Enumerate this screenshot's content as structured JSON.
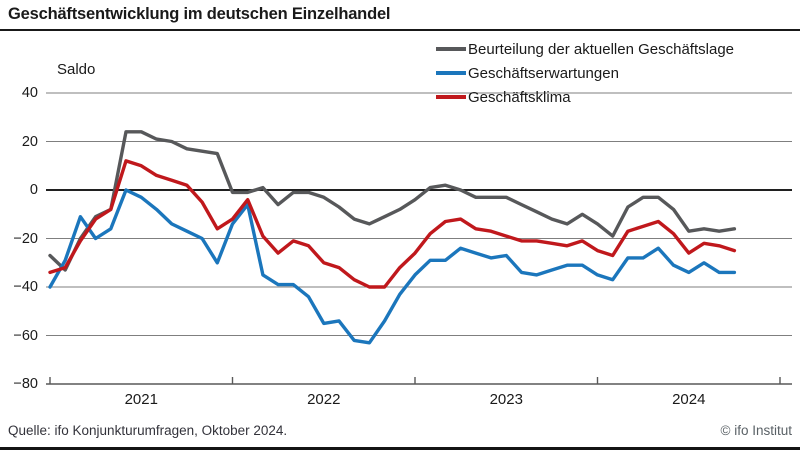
{
  "header": {
    "title": "Geschäftsentwicklung im deutschen Einzelhandel"
  },
  "footer": {
    "source": "Quelle: ifo Konjunkturumfragen, Oktober 2024.",
    "copyright": "© ifo Institut"
  },
  "chart_data": {
    "type": "line",
    "title": "Geschäftsentwicklung im deutschen Einzelhandel",
    "ylabel": "Saldo",
    "ylim": [
      -80,
      40
    ],
    "y_ticks": [
      40,
      20,
      0,
      -20,
      -40,
      -60,
      -80
    ],
    "grid": "horizontal",
    "zero_line": true,
    "legend_position": "top-right",
    "x_unit": "month",
    "x_start": "2021-01",
    "x_end": "2024-10",
    "x_year_labels": [
      "2021",
      "2022",
      "2023",
      "2024"
    ],
    "colors": {
      "lage": "#57585a",
      "erwartungen": "#1b76bc",
      "klima": "#c0181c",
      "gridline": "#7f7f7f",
      "zero_line": "#000000",
      "axis": "#595959"
    },
    "series": [
      {
        "name": "Beurteilung der aktuellen Geschäftslage",
        "key": "lage",
        "values": [
          -27,
          -33,
          -20,
          -11,
          -8,
          24,
          24,
          21,
          20,
          17,
          16,
          15,
          -1,
          -1,
          1,
          -6,
          -1,
          -1,
          -3,
          -7,
          -12,
          -14,
          -11,
          -8,
          -4,
          1,
          2,
          0,
          -3,
          -3,
          -3,
          -6,
          -9,
          -12,
          -14,
          -10,
          -14,
          -19,
          -7,
          -3,
          -3,
          -8,
          -17,
          -16,
          -17,
          -16
        ]
      },
      {
        "name": "Geschäftserwartungen",
        "key": "erwartungen",
        "values": [
          -40,
          -29,
          -11,
          -20,
          -16,
          0,
          -3,
          -8,
          -14,
          -17,
          -20,
          -30,
          -14,
          -6,
          -35,
          -39,
          -39,
          -44,
          -55,
          -54,
          -62,
          -63,
          -54,
          -43,
          -35,
          -29,
          -29,
          -24,
          -26,
          -28,
          -27,
          -34,
          -35,
          -33,
          -31,
          -31,
          -35,
          -37,
          -28,
          -28,
          -24,
          -31,
          -34,
          -30,
          -34,
          -34
        ]
      },
      {
        "name": "Geschäftsklima",
        "key": "klima",
        "values": [
          -34,
          -32,
          -21,
          -12,
          -8,
          12,
          10,
          6,
          4,
          2,
          -5,
          -16,
          -12,
          -4,
          -19,
          -26,
          -21,
          -23,
          -30,
          -32,
          -37,
          -40,
          -40,
          -32,
          -26,
          -18,
          -13,
          -12,
          -16,
          -17,
          -19,
          -21,
          -21,
          -22,
          -23,
          -21,
          -25,
          -27,
          -17,
          -15,
          -13,
          -18,
          -26,
          -22,
          -23,
          -25
        ]
      }
    ]
  }
}
